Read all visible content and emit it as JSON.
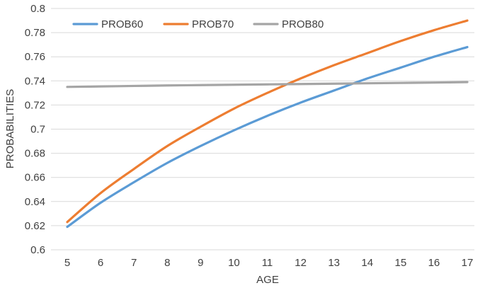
{
  "chart_data": {
    "type": "line",
    "title": "",
    "xlabel": "AGE",
    "ylabel": "PROBABILITIES",
    "x": [
      5,
      6,
      7,
      8,
      9,
      10,
      11,
      12,
      13,
      14,
      15,
      16,
      17
    ],
    "ylim": [
      0.6,
      0.8
    ],
    "yticks": [
      "0.6",
      "0.62",
      "0.64",
      "0.66",
      "0.68",
      "0.7",
      "0.72",
      "0.74",
      "0.76",
      "0.78",
      "0.8"
    ],
    "grid": true,
    "legend_position": "top-left",
    "series": [
      {
        "name": "PROB60",
        "color": "#5b9bd5",
        "values": [
          0.619,
          0.639,
          0.656,
          0.672,
          0.686,
          0.699,
          0.711,
          0.722,
          0.732,
          0.742,
          0.751,
          0.76,
          0.768
        ]
      },
      {
        "name": "PROB70",
        "color": "#ed7d31",
        "values": [
          0.623,
          0.647,
          0.667,
          0.686,
          0.702,
          0.717,
          0.73,
          0.742,
          0.753,
          0.763,
          0.773,
          0.782,
          0.79
        ]
      },
      {
        "name": "PROB80",
        "color": "#a5a5a5",
        "values": [
          0.735,
          0.7354,
          0.7358,
          0.7362,
          0.7365,
          0.7368,
          0.7371,
          0.7374,
          0.7377,
          0.738,
          0.7383,
          0.7386,
          0.739
        ]
      }
    ]
  }
}
